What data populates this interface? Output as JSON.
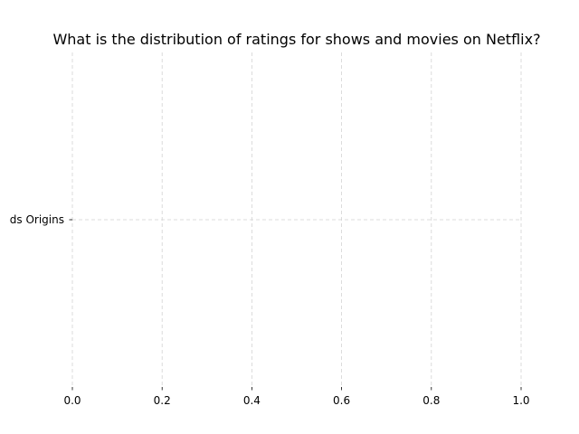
{
  "chart_data": {
    "type": "bar",
    "orientation": "horizontal",
    "title": "What is the distribution of ratings for shows and movies on Netflix?",
    "xlabel": "",
    "ylabel": "",
    "categories": [
      "ds Origins"
    ],
    "values": [
      0
    ],
    "xlim": [
      0,
      1
    ],
    "xticks": [
      "0.0",
      "0.2",
      "0.4",
      "0.6",
      "0.8",
      "1.0"
    ],
    "grid": true,
    "colors": {
      "grid": "#d3d3d3",
      "text": "#000000"
    }
  }
}
